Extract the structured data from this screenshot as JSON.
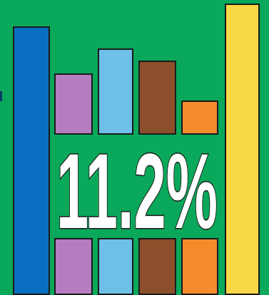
{
  "headline": {
    "text": "11.2%"
  },
  "colors": {
    "background": "#0aa85a",
    "blue": "#0a6ec0",
    "purple": "#b57cc0",
    "sky": "#6fc0e8",
    "brown": "#8b4f2c",
    "orange": "#f58c2c",
    "yellow": "#f8d846",
    "outline": "#1a1a1a",
    "text_fill": "#ffffff"
  }
}
